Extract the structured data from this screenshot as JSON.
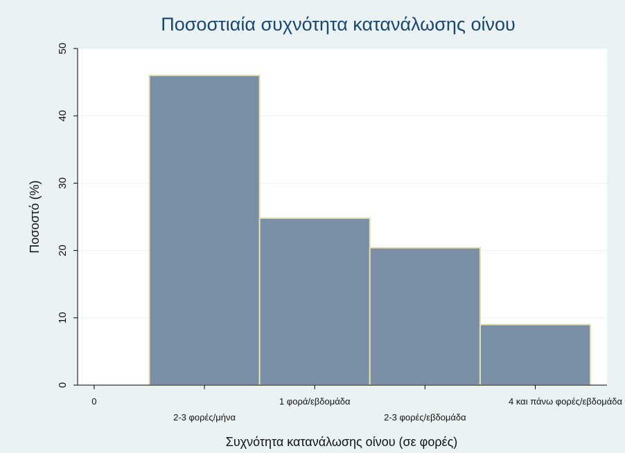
{
  "chart_data": {
    "type": "bar",
    "title": "Ποσοστιαία συχνότητα κατανάλωσης οίνου",
    "xlabel": "Συχνότητα κατανάλωσης οίνου (σε φορές)",
    "ylabel": "Ποσοστό (%)",
    "ylim": [
      0,
      50
    ],
    "yticks": [
      0,
      10,
      20,
      30,
      40,
      50
    ],
    "xlim": [
      -0.15,
      4.65
    ],
    "grid": true,
    "legend": "none",
    "x_tick_zero": "0",
    "categories": [
      "2-3 φορές/μήνα",
      "1 φορά/εβδομάδα",
      "2-3 φορές/εβδομάδα",
      "4 και πάνω φορές/εβδομάδα"
    ],
    "x_centers": [
      1,
      2,
      3,
      4
    ],
    "bar_width": 1,
    "values": [
      46,
      24.8,
      20.4,
      9
    ]
  },
  "colors": {
    "background": "#eaf2f3",
    "plot_background": "#ffffff",
    "bar_fill": "#7a8fa6",
    "bar_edge": "#e3e0b0",
    "title": "#1a476f",
    "grid": "#eaf2f3"
  }
}
